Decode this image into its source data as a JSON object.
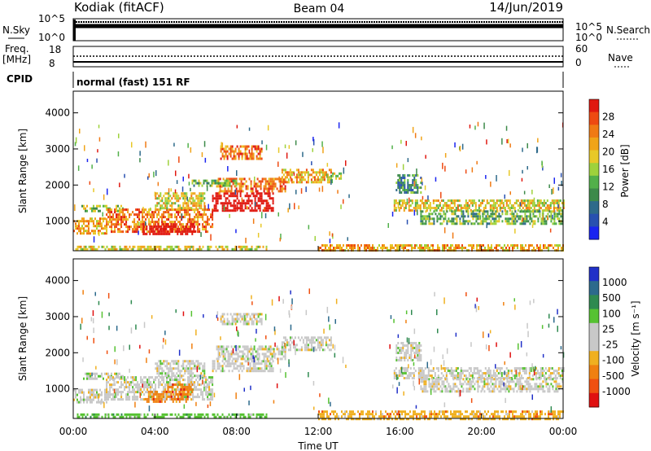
{
  "header": {
    "station": "Kodiak (fitACF)",
    "beam": "Beam 04",
    "date": "14/Jun/2019"
  },
  "top_panels": {
    "nsky_label": "N.Sky",
    "nsky_hi": "10^5",
    "nsky_lo": "10^0",
    "nsearch_label": "N.Search",
    "nsearch_hi": "10^5",
    "nsearch_lo": "10^0",
    "freq_label": "Freq.",
    "freq_unit": "[MHz]",
    "freq_hi": "18",
    "freq_lo": "8",
    "nave_label": "Nave",
    "nave_hi": "60",
    "nave_lo": "0",
    "cpid_label": "CPID",
    "cpid_text": "normal (fast) 151 RF"
  },
  "chart_data": [
    {
      "type": "heatmap",
      "panel": "power",
      "ylabel": "Slant Range [km]",
      "colorbar_label": "Power [dB]",
      "xlim": [
        0,
        24
      ],
      "ylim": [
        180,
        4600
      ],
      "yticks": [
        "1000",
        "2000",
        "3000",
        "4000"
      ],
      "colorbar_ticks": [
        "4",
        "8",
        "12",
        "16",
        "20",
        "24",
        "28"
      ],
      "colorbar_colors": [
        "#1a24f0",
        "#2850b0",
        "#2e6a8a",
        "#3d8a4a",
        "#52b04a",
        "#9ed23c",
        "#e8c828",
        "#f0a418",
        "#f07a14",
        "#ee4a12",
        "#e01810"
      ],
      "regions": [
        {
          "t0": 0.0,
          "t1": 1.6,
          "r0": 650,
          "r1": 1100,
          "level": 7
        },
        {
          "t0": 0.4,
          "t1": 2.4,
          "r0": 1250,
          "r1": 1450,
          "level": 5
        },
        {
          "t0": 1.6,
          "t1": 6.8,
          "r0": 700,
          "r1": 1350,
          "level": 8
        },
        {
          "t0": 3.4,
          "t1": 6.0,
          "r0": 650,
          "r1": 950,
          "level": 14
        },
        {
          "t0": 4.0,
          "t1": 6.4,
          "r0": 1350,
          "r1": 1800,
          "level": 6
        },
        {
          "t0": 6.8,
          "t1": 9.8,
          "r0": 1300,
          "r1": 1800,
          "level": 12
        },
        {
          "t0": 7.0,
          "t1": 10.4,
          "r0": 1800,
          "r1": 2200,
          "level": 8
        },
        {
          "t0": 10.2,
          "t1": 12.6,
          "r0": 2050,
          "r1": 2450,
          "level": 7
        },
        {
          "t0": 12.6,
          "t1": 13.1,
          "r0": 2150,
          "r1": 2350,
          "level": 5
        },
        {
          "t0": 7.2,
          "t1": 9.2,
          "r0": 2750,
          "r1": 3100,
          "level": 8
        },
        {
          "t0": 5.8,
          "t1": 8.0,
          "r0": 1950,
          "r1": 2150,
          "level": 4
        },
        {
          "t0": 0.1,
          "t1": 9.5,
          "r0": 190,
          "r1": 320,
          "level": 6
        },
        {
          "t0": 12.0,
          "t1": 24.0,
          "r0": 190,
          "r1": 360,
          "level": 7
        },
        {
          "t0": 15.7,
          "t1": 24.0,
          "r0": 1300,
          "r1": 1600,
          "level": 6
        },
        {
          "t0": 17.0,
          "t1": 24.0,
          "r0": 950,
          "r1": 1300,
          "level": 4
        },
        {
          "t0": 15.8,
          "t1": 17.0,
          "r0": 1800,
          "r1": 2300,
          "level": 3
        }
      ]
    },
    {
      "type": "heatmap",
      "panel": "velocity",
      "ylabel": "Slant Range [km]",
      "xlabel": "Time UT",
      "colorbar_label": "Velocity [m s⁻¹]",
      "xlim": [
        0,
        24
      ],
      "ylim": [
        180,
        4600
      ],
      "xticks": [
        "00:00",
        "04:00",
        "08:00",
        "12:00",
        "16:00",
        "20:00",
        "00:00"
      ],
      "yticks": [
        "1000",
        "2000",
        "3000",
        "4000"
      ],
      "colorbar_ticks": [
        "1000",
        "500",
        "100",
        "25",
        "-25",
        "-100",
        "-500",
        "-1000"
      ],
      "colorbar_colors": [
        "#2030c8",
        "#2c6a8c",
        "#2f8a50",
        "#56c232",
        "#c8c8c8",
        "#c8c8c8",
        "#f0b020",
        "#f08010",
        "#f05010",
        "#e01010"
      ],
      "regions": [
        {
          "t0": 0.0,
          "t1": 1.6,
          "r0": 650,
          "r1": 1000,
          "level": 4
        },
        {
          "t0": 0.4,
          "t1": 2.4,
          "r0": 1250,
          "r1": 1450,
          "level": 4
        },
        {
          "t0": 1.6,
          "t1": 6.8,
          "r0": 700,
          "r1": 1350,
          "level": 4
        },
        {
          "t0": 3.5,
          "t1": 5.6,
          "r0": 650,
          "r1": 950,
          "level": 7
        },
        {
          "t0": 4.0,
          "t1": 6.4,
          "r0": 1350,
          "r1": 1800,
          "level": 4
        },
        {
          "t0": 6.8,
          "t1": 9.8,
          "r0": 1500,
          "r1": 1800,
          "level": 4
        },
        {
          "t0": 7.0,
          "t1": 10.4,
          "r0": 1850,
          "r1": 2200,
          "level": 4
        },
        {
          "t0": 10.2,
          "t1": 12.6,
          "r0": 2100,
          "r1": 2450,
          "level": 4
        },
        {
          "t0": 7.2,
          "t1": 9.2,
          "r0": 2800,
          "r1": 3100,
          "level": 4
        },
        {
          "t0": 0.1,
          "t1": 9.5,
          "r0": 190,
          "r1": 320,
          "level": 3
        },
        {
          "t0": 12.0,
          "t1": 24.0,
          "r0": 190,
          "r1": 400,
          "level": 6
        },
        {
          "t0": 15.7,
          "t1": 24.0,
          "r0": 1300,
          "r1": 1600,
          "level": 4
        },
        {
          "t0": 17.0,
          "t1": 24.0,
          "r0": 950,
          "r1": 1300,
          "level": 4
        },
        {
          "t0": 4.6,
          "t1": 5.8,
          "r0": 850,
          "r1": 1150,
          "level": 7
        },
        {
          "t0": 15.8,
          "t1": 17.0,
          "r0": 1800,
          "r1": 2300,
          "level": 4
        }
      ]
    }
  ]
}
